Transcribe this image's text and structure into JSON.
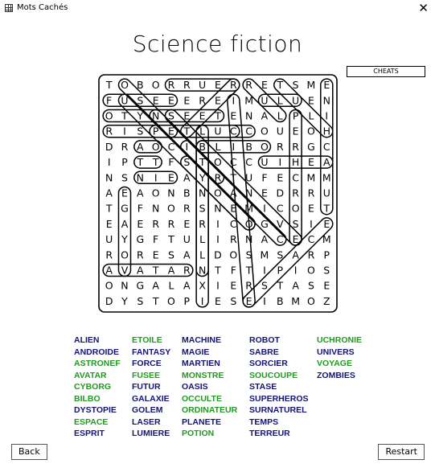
{
  "window": {
    "title": "Mots Cachés",
    "close_glyph": "✕"
  },
  "page": {
    "title": "Science fiction"
  },
  "cheats_label": "CHEATS",
  "grid": [
    "TOBORRUERRETSME",
    "FUSEEEREIMULUEN",
    "OTYNSEETENALPLI",
    "RISPETLUCCOUEOH",
    "DRAOCIBLIBORRGC",
    "IPTTFSTOCCUIHEA",
    "NSNIEAYRTUFECMM",
    "AEAONBNOANEDRRU",
    "TGFNORSNEMICOET",
    "EAERRERICOGVSIE",
    "UYGFTULIRNACECM",
    "RORESALDOSMSARP",
    "AVATARNTFTIPIOS",
    "ONGALAXIERSTASE",
    "DYSTOPIESEIBMOZ"
  ],
  "found_marks": [
    [
      1,
      0,
      1,
      4
    ],
    [
      4,
      2,
      4,
      3
    ],
    [
      5,
      2,
      5,
      3
    ],
    [
      6,
      2,
      6,
      4
    ],
    [
      12,
      0,
      12,
      5
    ],
    [
      0,
      11,
      3,
      14
    ],
    [
      0,
      4,
      0,
      8
    ],
    [
      2,
      0,
      2,
      7
    ],
    [
      2,
      4,
      10,
      12
    ],
    [
      3,
      3,
      3,
      9
    ],
    [
      3,
      5,
      0,
      8
    ],
    [
      5,
      5,
      9,
      9
    ],
    [
      0,
      1,
      10,
      11
    ],
    [
      4,
      6,
      4,
      10
    ],
    [
      7,
      1,
      12,
      1
    ],
    [
      3,
      6,
      12,
      6
    ],
    [
      1,
      8,
      14,
      9
    ],
    [
      3,
      0,
      3,
      8
    ],
    [
      1,
      10,
      1,
      12
    ],
    [
      8,
      14,
      0,
      14
    ],
    [
      9,
      14,
      14,
      9
    ],
    [
      2,
      12,
      10,
      12
    ],
    [
      2,
      3,
      3,
      4
    ],
    [
      4,
      6,
      14,
      6
    ],
    [
      4,
      5,
      6,
      7
    ],
    [
      0,
      9,
      2,
      11
    ],
    [
      5,
      10,
      5,
      14
    ],
    [
      1,
      1,
      9,
      9
    ]
  ],
  "words": [
    [
      {
        "text": "ALIEN",
        "found": false
      },
      {
        "text": "ANDROIDE",
        "found": false
      },
      {
        "text": "ASTRONEF",
        "found": true
      },
      {
        "text": "AVATAR",
        "found": true
      },
      {
        "text": "CYBORG",
        "found": true
      },
      {
        "text": "BILBO",
        "found": true
      },
      {
        "text": "DYSTOPIE",
        "found": false
      },
      {
        "text": "ESPACE",
        "found": true
      },
      {
        "text": "ESPRIT",
        "found": false
      }
    ],
    [
      {
        "text": "ETOILE",
        "found": true
      },
      {
        "text": "FANTASY",
        "found": false
      },
      {
        "text": "FORCE",
        "found": false
      },
      {
        "text": "FUSEE",
        "found": true
      },
      {
        "text": "FUTUR",
        "found": false
      },
      {
        "text": "GALAXIE",
        "found": false
      },
      {
        "text": "GOLEM",
        "found": false
      },
      {
        "text": "LASER",
        "found": false
      },
      {
        "text": "LUMIERE",
        "found": false
      }
    ],
    [
      {
        "text": "MACHINE",
        "found": false
      },
      {
        "text": "MAGIE",
        "found": false
      },
      {
        "text": "MARTIEN",
        "found": false
      },
      {
        "text": "MONSTRE",
        "found": true
      },
      {
        "text": "OASIS",
        "found": false
      },
      {
        "text": "OCCULTE",
        "found": true
      },
      {
        "text": "ORDINATEUR",
        "found": true
      },
      {
        "text": "PLANETE",
        "found": false
      },
      {
        "text": "POTION",
        "found": true
      }
    ],
    [
      {
        "text": "ROBOT",
        "found": false
      },
      {
        "text": "SABRE",
        "found": false
      },
      {
        "text": "SORCIER",
        "found": false
      },
      {
        "text": "SOUCOUPE",
        "found": true
      },
      {
        "text": "STASE",
        "found": false
      },
      {
        "text": "SUPERHEROS",
        "found": false
      },
      {
        "text": "SURNATUREL",
        "found": false
      },
      {
        "text": "TEMPS",
        "found": false
      },
      {
        "text": "TERREUR",
        "found": false
      }
    ],
    [
      {
        "text": "UCHRONIE",
        "found": true
      },
      {
        "text": "UNIVERS",
        "found": false
      },
      {
        "text": "VOYAGE",
        "found": true
      },
      {
        "text": "ZOMBIES",
        "found": false
      }
    ]
  ],
  "back_label": "Back",
  "restart_label": "Restart"
}
